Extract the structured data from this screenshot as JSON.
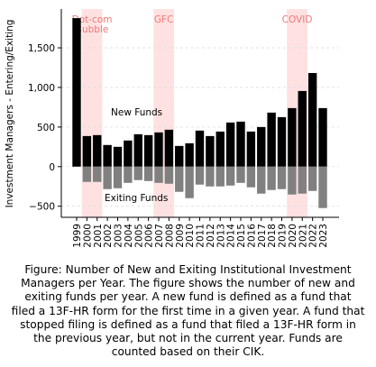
{
  "chart_data": {
    "type": "bar",
    "ylabel": "Investment Managers - Entering/Exiting",
    "categories": [
      "1999",
      "2000",
      "2001",
      "2002",
      "2003",
      "2004",
      "2005",
      "2006",
      "2007",
      "2008",
      "2009",
      "2010",
      "2011",
      "2012",
      "2013",
      "2014",
      "2015",
      "2016",
      "2017",
      "2018",
      "2019",
      "2020",
      "2021",
      "2022",
      "2023"
    ],
    "series": [
      {
        "name": "New Funds",
        "color": "#000000",
        "values": [
          1875,
          386,
          398,
          273,
          250,
          330,
          409,
          398,
          432,
          466,
          261,
          295,
          455,
          386,
          443,
          557,
          568,
          443,
          500,
          682,
          625,
          739,
          955,
          1182,
          739
        ]
      },
      {
        "name": "Exiting Funds",
        "color": "#808080",
        "values": [
          0,
          -193,
          -193,
          -284,
          -273,
          -205,
          -170,
          -182,
          -205,
          -216,
          -318,
          -398,
          -227,
          -250,
          -250,
          -239,
          -205,
          -261,
          -341,
          -295,
          -284,
          -352,
          -341,
          -307,
          -523
        ]
      }
    ],
    "spans": [
      {
        "lines": [
          "Dot-com",
          "Bubble"
        ],
        "start": "2000",
        "end": "2001"
      },
      {
        "lines": [
          "GFC"
        ],
        "start": "2007",
        "end": "2008"
      },
      {
        "lines": [
          "COVID"
        ],
        "start": "2020",
        "end": "2021"
      }
    ],
    "span_color": "#ffb3b3",
    "span_text_color": "#f07878",
    "ylim": [
      -640,
      1990
    ],
    "yticks": [
      {
        "value": -500,
        "label": "−500"
      },
      0,
      500,
      {
        "value": 1000,
        "label": "1,000"
      },
      {
        "value": 1500,
        "label": "1,500"
      }
    ],
    "grid": true
  },
  "caption": "Figure: Number of New and Exiting Institutional Investment Managers per Year. The figure shows the number of new and exiting funds per year. A new fund is defined as a fund that filed a 13F-HR form for the first time in a given year. A fund that stopped filing is defined as a fund that filed a 13F-HR form in the previous year, but not in the current year. Funds are counted based on their CIK."
}
